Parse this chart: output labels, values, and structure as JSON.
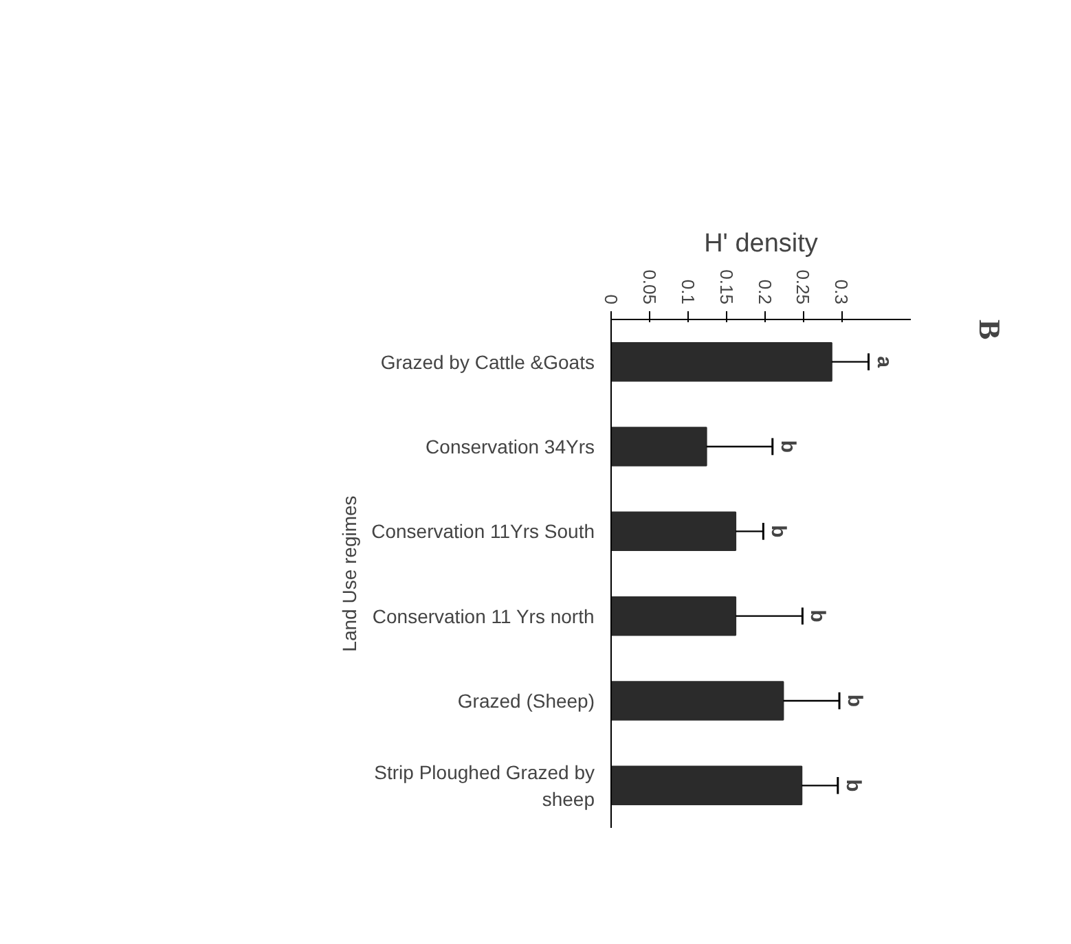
{
  "chart_data": {
    "type": "bar",
    "orientation": "horizontal",
    "xlabel": "H' density",
    "ylabel": "Land Use regimes",
    "categories": [
      "Grazed by Cattle &Goats",
      "Conservation 34Yrs",
      "Conservation 11Yrs South",
      "Conservation 11 Yrs north",
      "Grazed (Sheep)",
      "Strip Ploughed Grazed by sheep"
    ],
    "values": [
      0.287,
      0.124,
      0.162,
      0.162,
      0.224,
      0.248
    ],
    "errors": [
      [
        0.287,
        0.335
      ],
      [
        0.124,
        0.21
      ],
      [
        0.162,
        0.198
      ],
      [
        0.162,
        0.249
      ],
      [
        0.224,
        0.297
      ],
      [
        0.248,
        0.295
      ]
    ],
    "color": "#2b2b2b",
    "xlim": [
      0,
      0.39
    ],
    "xticks": [
      0,
      0.05,
      0.1,
      0.15,
      0.2,
      0.25,
      0.3
    ],
    "grid": false,
    "annotations": [
      "a",
      "b",
      "b",
      "b",
      "b",
      "b",
      "B"
    ]
  }
}
